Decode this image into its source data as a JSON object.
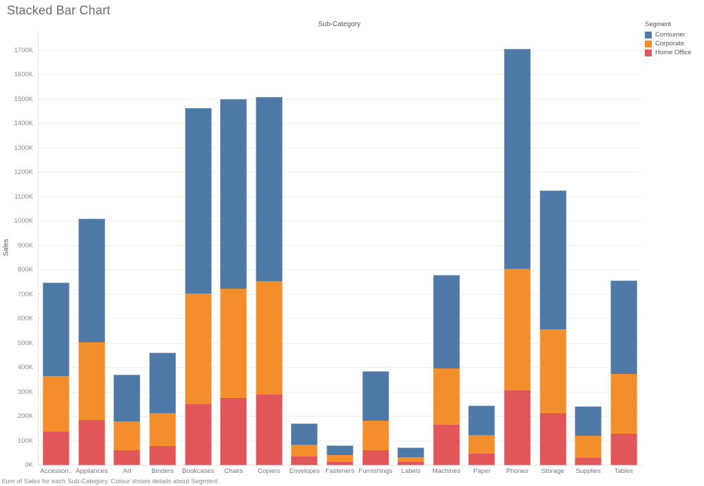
{
  "title": "Stacked Bar Chart",
  "caption": "Sum of Sales for each Sub-Category. Colour shows details about Segment.",
  "legend": {
    "title": "Segment",
    "items": [
      {
        "label": "Consumer",
        "color": "#4e79a7"
      },
      {
        "label": "Corporate",
        "color": "#f28e2b"
      },
      {
        "label": "Home Office",
        "color": "#e15759"
      }
    ]
  },
  "chart_data": {
    "type": "bar",
    "stacked": true,
    "title": "Sub-Category",
    "xlabel": "Sub-Category",
    "ylabel": "Sales",
    "unit": "K (thousands of sales)",
    "ylim": [
      0,
      1777
    ],
    "grid": true,
    "legend_position": "top-right",
    "y_ticks": [
      "0K",
      "100K",
      "200K",
      "300K",
      "400K",
      "500K",
      "600K",
      "700K",
      "800K",
      "900K",
      "1000K",
      "1100K",
      "1200K",
      "1300K",
      "1400K",
      "1500K",
      "1600K",
      "1700K"
    ],
    "categories": [
      "Accessories",
      "Appliances",
      "Art",
      "Binders",
      "Bookcases",
      "Chairs",
      "Copiers",
      "Envelopes",
      "Fasteners",
      "Furnishings",
      "Labels",
      "Machines",
      "Paper",
      "Phones",
      "Storage",
      "Supplies",
      "Tables"
    ],
    "categories_display": [
      "Accessori..",
      "Appliances",
      "Art",
      "Binders",
      "Bookcases",
      "Chairs",
      "Copiers",
      "Envelopes",
      "Fasteners",
      "Furnishings",
      "Labels",
      "Machines",
      "Paper",
      "Phones",
      "Storage",
      "Supplies",
      "Tables"
    ],
    "series": [
      {
        "name": "Consumer",
        "color": "#4e79a7",
        "values_k": [
          384,
          506,
          192,
          247,
          762,
          776,
          754,
          87,
          41,
          201,
          38,
          381,
          119,
          902,
          570,
          122,
          382
        ]
      },
      {
        "name": "Corporate",
        "color": "#f28e2b",
        "values_k": [
          228,
          320,
          118,
          134,
          454,
          448,
          465,
          47,
          27,
          122,
          22,
          232,
          77,
          497,
          344,
          91,
          245
        ]
      },
      {
        "name": "Home Office",
        "color": "#e15759",
        "values_k": [
          137,
          185,
          62,
          80,
          250,
          277,
          290,
          37,
          15,
          62,
          13,
          166,
          48,
          308,
          213,
          30,
          130
        ]
      }
    ],
    "totals_k": [
      749,
      1011,
      372,
      461,
      1466,
      1501,
      1509,
      171,
      83,
      385,
      73,
      779,
      244,
      1707,
      1127,
      243,
      757
    ]
  }
}
